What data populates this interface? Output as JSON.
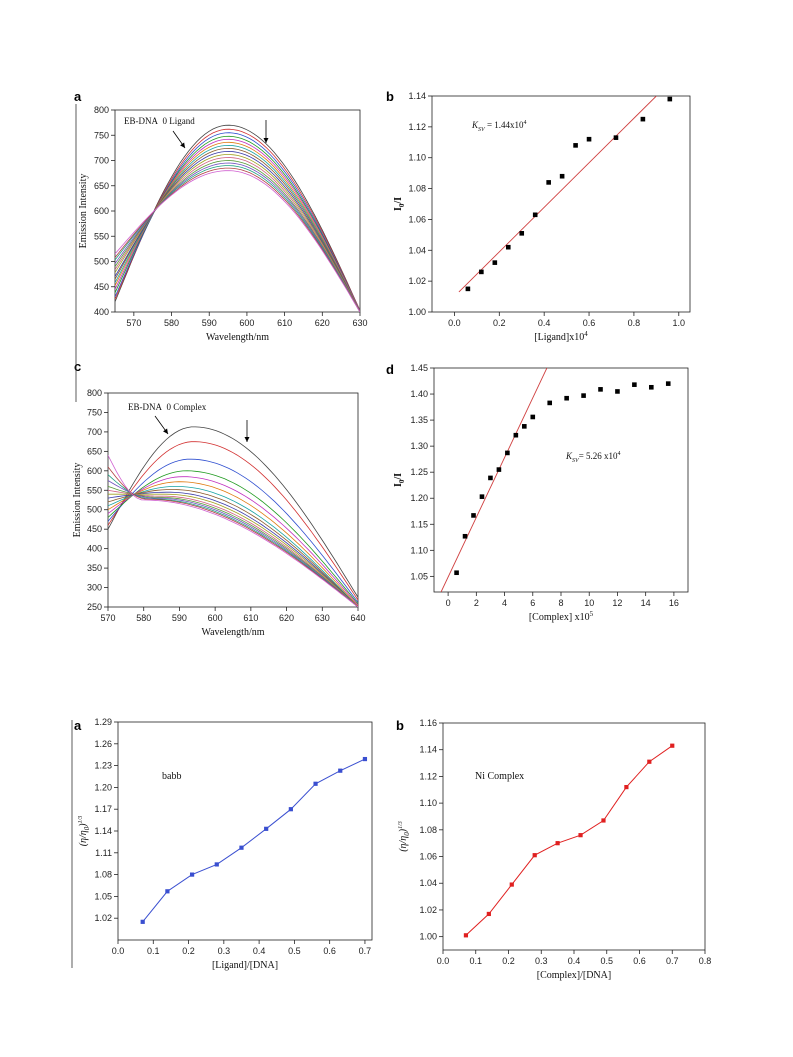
{
  "chart_data": [
    {
      "id": "a",
      "type": "line",
      "panel_letter": "a",
      "xlabel": "Wavelength/nm",
      "ylabel": "Emission Intensity",
      "xlim": [
        565,
        630
      ],
      "ylim": [
        400,
        800
      ],
      "xticks": [
        570,
        580,
        590,
        600,
        610,
        620,
        630
      ],
      "yticks": [
        400,
        450,
        500,
        550,
        600,
        650,
        700,
        750,
        800
      ],
      "annotation_label": "EB-DNA",
      "annotation_value": "0 Ligand",
      "family": {
        "peak_x": 595,
        "peaks": [
          770,
          762,
          755,
          748,
          742,
          736,
          730,
          724,
          718,
          712,
          706,
          700,
          695,
          690,
          685,
          680
        ],
        "left_values": [
          420,
          425,
          430,
          438,
          445,
          452,
          458,
          465,
          470,
          478,
          484,
          490,
          496,
          503,
          508,
          515
        ],
        "right_values": [
          403,
          403,
          402,
          402,
          402,
          401,
          401,
          401,
          400,
          400,
          400,
          400,
          400,
          400,
          400,
          400
        ]
      }
    },
    {
      "id": "b",
      "type": "scatter",
      "panel_letter": "b",
      "xlabel": "[Ligand]x10",
      "xlabel_sup": "4",
      "ylabel": "I",
      "ylabel_sub": "0",
      "ylabel_tail": "/I",
      "xlim": [
        -0.1,
        1.05
      ],
      "ylim": [
        1.0,
        1.14
      ],
      "xticks": [
        0.0,
        0.2,
        0.4,
        0.6,
        0.8,
        1.0
      ],
      "yticks": [
        1.0,
        1.02,
        1.04,
        1.06,
        1.08,
        1.1,
        1.12,
        1.14
      ],
      "tick_decimals": [
        1,
        2
      ],
      "annotation_label": "K",
      "annotation_sub": "SV",
      "annotation_value": " = 1.44x10",
      "annotation_sup": "4",
      "points": [
        [
          0.06,
          1.015
        ],
        [
          0.12,
          1.026
        ],
        [
          0.18,
          1.032
        ],
        [
          0.24,
          1.042
        ],
        [
          0.3,
          1.051
        ],
        [
          0.36,
          1.063
        ],
        [
          0.42,
          1.084
        ],
        [
          0.48,
          1.088
        ],
        [
          0.54,
          1.108
        ],
        [
          0.6,
          1.112
        ],
        [
          0.72,
          1.113
        ],
        [
          0.84,
          1.125
        ],
        [
          0.96,
          1.138
        ]
      ],
      "fit_line": [
        [
          0.02,
          1.013
        ],
        [
          0.9,
          1.14
        ]
      ]
    },
    {
      "id": "c",
      "type": "line",
      "panel_letter": "c",
      "xlabel": "Wavelength/nm",
      "ylabel": "Emission Intensity",
      "xlim": [
        570,
        640
      ],
      "ylim": [
        250,
        800
      ],
      "xticks": [
        570,
        580,
        590,
        600,
        610,
        620,
        630,
        640
      ],
      "yticks": [
        250,
        300,
        350,
        400,
        450,
        500,
        550,
        600,
        650,
        700,
        750,
        800
      ],
      "annotation_label": "EB-DNA",
      "annotation_value": "0 Complex",
      "family": {
        "peak_x": [
          594,
          594,
          593,
          592,
          591,
          590,
          589,
          588,
          587,
          586,
          585,
          584,
          583,
          582,
          581,
          580
        ],
        "peaks": [
          713,
          675,
          630,
          600,
          585,
          572,
          560,
          552,
          545,
          540,
          535,
          532,
          530,
          528,
          527,
          525
        ],
        "left_values": [
          450,
          460,
          470,
          480,
          490,
          500,
          510,
          520,
          530,
          540,
          550,
          560,
          575,
          590,
          610,
          640
        ],
        "right_values": [
          275,
          268,
          262,
          258,
          255,
          252,
          250,
          250,
          250,
          250,
          250,
          250,
          250,
          250,
          250,
          250
        ]
      }
    },
    {
      "id": "d",
      "type": "scatter",
      "panel_letter": "d",
      "xlabel": "[Complex] x10",
      "xlabel_sup": "5",
      "ylabel": "I",
      "ylabel_sub": "0",
      "ylabel_tail": "/I",
      "xlim": [
        -1,
        17
      ],
      "ylim": [
        1.02,
        1.45
      ],
      "xticks": [
        0,
        2,
        4,
        6,
        8,
        10,
        12,
        14,
        16
      ],
      "yticks": [
        1.05,
        1.1,
        1.15,
        1.2,
        1.25,
        1.3,
        1.35,
        1.4,
        1.45
      ],
      "tick_decimals": [
        0,
        2
      ],
      "annotation_label": "K",
      "annotation_sub": "SV",
      "annotation_value": "= 5.26 x10",
      "annotation_sup": "4",
      "points": [
        [
          0.6,
          1.057
        ],
        [
          1.2,
          1.127
        ],
        [
          1.8,
          1.167
        ],
        [
          2.4,
          1.203
        ],
        [
          3.0,
          1.239
        ],
        [
          3.6,
          1.255
        ],
        [
          4.2,
          1.287
        ],
        [
          4.8,
          1.321
        ],
        [
          5.4,
          1.338
        ],
        [
          6.0,
          1.356
        ],
        [
          7.2,
          1.383
        ],
        [
          8.4,
          1.392
        ],
        [
          9.6,
          1.397
        ],
        [
          10.8,
          1.409
        ],
        [
          12.0,
          1.405
        ],
        [
          13.2,
          1.418
        ],
        [
          14.4,
          1.413
        ],
        [
          15.6,
          1.42
        ]
      ],
      "fit_line": [
        [
          -0.5,
          1.02
        ],
        [
          7.0,
          1.45
        ]
      ]
    },
    {
      "id": "e",
      "type": "line",
      "panel_letter": "a",
      "xlabel": "[Ligand]/[DNA]",
      "ylabel": "(η/η",
      "ylabel_sub": "0",
      "ylabel_tail": ")",
      "ylabel_sup": "1/3",
      "xlim": [
        0.0,
        0.72
      ],
      "ylim": [
        0.99,
        1.29
      ],
      "xticks": [
        0.0,
        0.1,
        0.2,
        0.3,
        0.4,
        0.5,
        0.6,
        0.7
      ],
      "yticks": [
        1.02,
        1.05,
        1.08,
        1.11,
        1.14,
        1.17,
        1.2,
        1.23,
        1.26,
        1.29
      ],
      "tick_decimals": [
        1,
        2
      ],
      "annotation_value": "babb",
      "color": "#3a4fd0",
      "points": [
        [
          0.07,
          1.015
        ],
        [
          0.14,
          1.057
        ],
        [
          0.21,
          1.08
        ],
        [
          0.28,
          1.094
        ],
        [
          0.35,
          1.117
        ],
        [
          0.42,
          1.143
        ],
        [
          0.49,
          1.17
        ],
        [
          0.56,
          1.205
        ],
        [
          0.63,
          1.223
        ],
        [
          0.7,
          1.239
        ]
      ]
    },
    {
      "id": "f",
      "type": "line",
      "panel_letter": "b",
      "xlabel": "[Complex]/[DNA]",
      "ylabel": "(η/η",
      "ylabel_sub": "0",
      "ylabel_tail": ")",
      "ylabel_sup": "1/3",
      "xlim": [
        0.0,
        0.8
      ],
      "ylim": [
        0.99,
        1.16
      ],
      "xticks": [
        0.0,
        0.1,
        0.2,
        0.3,
        0.4,
        0.5,
        0.6,
        0.7,
        0.8
      ],
      "yticks": [
        1.0,
        1.02,
        1.04,
        1.06,
        1.08,
        1.1,
        1.12,
        1.14,
        1.16
      ],
      "tick_decimals": [
        1,
        2
      ],
      "annotation_value": "Ni Complex",
      "color": "#e02020",
      "points": [
        [
          0.07,
          1.001
        ],
        [
          0.14,
          1.017
        ],
        [
          0.21,
          1.039
        ],
        [
          0.28,
          1.061
        ],
        [
          0.35,
          1.07
        ],
        [
          0.42,
          1.076
        ],
        [
          0.49,
          1.087
        ],
        [
          0.56,
          1.112
        ],
        [
          0.63,
          1.131
        ],
        [
          0.7,
          1.143
        ]
      ]
    }
  ]
}
